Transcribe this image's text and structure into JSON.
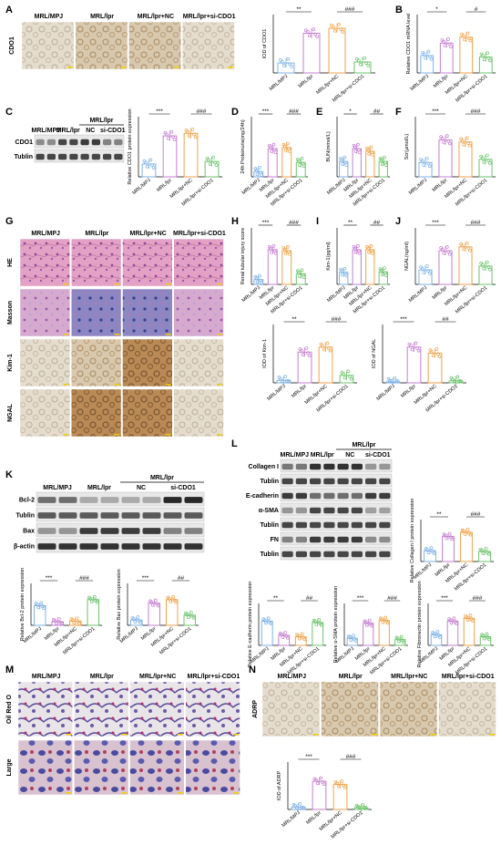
{
  "groups": [
    "MRL/MPJ",
    "MRL/lpr",
    "MRL/lpr+NC",
    "MRL/lpr+si-CDO1"
  ],
  "group_colors": [
    "#7fb2e5",
    "#c57fd1",
    "#f0a24a",
    "#6cc36c"
  ],
  "panels": {
    "A": {
      "letter": "A",
      "row_label": "CDO1"
    },
    "B": {
      "letter": "B"
    },
    "C": {
      "letter": "C",
      "blot_rows": [
        "CDO1",
        "Tublin"
      ],
      "header": "MRL/lpr",
      "lanes": [
        "MRL/MPJ",
        "MRL/lpr",
        "NC",
        "si-CDO1"
      ]
    },
    "D": {
      "letter": "D"
    },
    "E": {
      "letter": "E"
    },
    "F": {
      "letter": "F"
    },
    "G": {
      "letter": "G",
      "row_labels": [
        "HE",
        "Masson",
        "Kim-1",
        "NGAL"
      ]
    },
    "H": {
      "letter": "H"
    },
    "I": {
      "letter": "I"
    },
    "J": {
      "letter": "J"
    },
    "K": {
      "letter": "K",
      "blot_rows": [
        "Bcl-2",
        "Tublin",
        "Bax",
        "β-actin"
      ],
      "header": "MRL/lpr",
      "lanes": [
        "MRL/MPJ",
        "MRL/lpr",
        "NC",
        "si-CDO1"
      ]
    },
    "L": {
      "letter": "L",
      "blot_rows": [
        "Collagen I",
        "Tublin",
        "E-cadherin",
        "α-SMA",
        "Tublin",
        "FN",
        "Tublin"
      ],
      "header": "MRL/lpr",
      "lanes": [
        "MRL/MPJ",
        "MRL/lpr",
        "NC",
        "si-CDO1"
      ]
    },
    "M": {
      "letter": "M",
      "row_labels": [
        "Oil Red O",
        "Large"
      ]
    },
    "N": {
      "letter": "N",
      "row_label": "ADRP"
    }
  },
  "chart_data": [
    {
      "id": "A",
      "type": "scatter",
      "ylabel": "IOD of CDO1",
      "categories": [
        "MRL/MPJ",
        "MRL/lpr",
        "MRL/lpr+NC",
        "MRL/lpr+si-CDO1"
      ],
      "values": [
        0.2,
        0.8,
        0.9,
        0.22
      ],
      "sig": [
        "**",
        "###"
      ]
    },
    {
      "id": "B",
      "type": "scatter",
      "ylabel": "Relative CDO1 mRNA level",
      "categories": [
        "MRL/MPJ",
        "MRL/lpr",
        "MRL/lpr+NC",
        "MRL/lpr+si-CDO1"
      ],
      "values": [
        0.35,
        0.6,
        0.72,
        0.32
      ],
      "sig": [
        "*",
        "#"
      ]
    },
    {
      "id": "C",
      "type": "scatter",
      "ylabel": "Relative CDO1 protein expression",
      "categories": [
        "MRL/MPJ",
        "MRL/lpr",
        "MRL/lpr+NC",
        "MRL/lpr+si-CDO1"
      ],
      "values": [
        0.25,
        0.8,
        0.85,
        0.3
      ],
      "sig": [
        "***",
        "###"
      ]
    },
    {
      "id": "D",
      "type": "scatter",
      "ylabel": "24h Proteinuria(mg/24h)",
      "categories": [
        "MRL/MPJ",
        "MRL/lpr",
        "MRL/lpr+NC",
        "MRL/lpr+si-CDO1"
      ],
      "values": [
        0.1,
        0.55,
        0.57,
        0.28
      ],
      "sig": [
        "***",
        "###"
      ]
    },
    {
      "id": "E",
      "type": "scatter",
      "ylabel": "BUN(mmol/L)",
      "categories": [
        "MRL/MPJ",
        "MRL/lpr",
        "MRL/lpr+NC",
        "MRL/lpr+si-CDO1"
      ],
      "values": [
        0.3,
        0.55,
        0.5,
        0.3
      ],
      "sig": [
        "*",
        "##"
      ]
    },
    {
      "id": "F",
      "type": "scatter",
      "ylabel": "Scr(μmol/L)",
      "categories": [
        "MRL/MPJ",
        "MRL/lpr",
        "MRL/lpr+NC",
        "MRL/lpr+si-CDO1"
      ],
      "values": [
        0.28,
        0.72,
        0.68,
        0.34
      ],
      "sig": [
        "***",
        "###"
      ]
    },
    {
      "id": "H",
      "type": "scatter",
      "ylabel": "Renal tubular injury score",
      "categories": [
        "MRL/MPJ",
        "MRL/lpr",
        "MRL/lpr+NC",
        "MRL/lpr+si-CDO1"
      ],
      "values": [
        0.1,
        0.72,
        0.7,
        0.22
      ],
      "sig": [
        "***",
        "###"
      ]
    },
    {
      "id": "I",
      "type": "scatter",
      "ylabel": "Kim-1(pg/ml)",
      "categories": [
        "MRL/MPJ",
        "MRL/lpr",
        "MRL/lpr+NC",
        "MRL/lpr+si-CDO1"
      ],
      "values": [
        0.25,
        0.72,
        0.72,
        0.26
      ],
      "sig": [
        "**",
        "##"
      ]
    },
    {
      "id": "J",
      "type": "scatter",
      "ylabel": "NGAL(ng/ml)",
      "categories": [
        "MRL/MPJ",
        "MRL/lpr",
        "MRL/lpr+NC",
        "MRL/lpr+si-CDO1"
      ],
      "values": [
        0.3,
        0.7,
        0.78,
        0.38
      ],
      "sig": [
        "***",
        "###"
      ]
    },
    {
      "id": "G1",
      "type": "scatter",
      "ylabel": "IOD of Kim-1",
      "categories": [
        "MRL/MPJ",
        "MRL/lpr",
        "MRL/lpr+NC",
        "MRL/lpr+si-CDO1"
      ],
      "values": [
        0.05,
        0.62,
        0.72,
        0.15
      ],
      "sig": [
        "**",
        "###"
      ]
    },
    {
      "id": "G2",
      "type": "scatter",
      "ylabel": "IOD of NGAL",
      "categories": [
        "MRL/MPJ",
        "MRL/lpr",
        "MRL/lpr+NC",
        "MRL/lpr+si-CDO1"
      ],
      "values": [
        0.02,
        0.72,
        0.6,
        0.04
      ],
      "sig": [
        "***",
        "##"
      ]
    },
    {
      "id": "K1",
      "type": "scatter",
      "ylabel": "Relative Bcl-2 protein expression",
      "categories": [
        "MRL/MPJ",
        "MRL/lpr",
        "MRL/lpr+NC",
        "MRL/lpr+si-CDO1"
      ],
      "values": [
        0.55,
        0.1,
        0.12,
        0.72
      ],
      "sig": [
        "***",
        "###"
      ]
    },
    {
      "id": "K2",
      "type": "scatter",
      "ylabel": "Relative Bax protein expression",
      "categories": [
        "MRL/MPJ",
        "MRL/lpr",
        "MRL/lpr+NC",
        "MRL/lpr+si-CDO1"
      ],
      "values": [
        0.15,
        0.62,
        0.72,
        0.28
      ],
      "sig": [
        "***",
        "##"
      ]
    },
    {
      "id": "L1",
      "type": "scatter",
      "ylabel": "Relative Collagen I protein expression",
      "categories": [
        "MRL/MPJ",
        "MRL/lpr",
        "MRL/lpr+NC",
        "MRL/lpr+si-CDO1"
      ],
      "values": [
        0.3,
        0.7,
        0.82,
        0.28
      ],
      "sig": [
        "**",
        "###"
      ]
    },
    {
      "id": "L2",
      "type": "scatter",
      "ylabel": "Relative E-cadherin protein expression",
      "categories": [
        "MRL/MPJ",
        "MRL/lpr",
        "MRL/lpr+NC",
        "MRL/lpr+si-CDO1"
      ],
      "values": [
        0.68,
        0.28,
        0.24,
        0.64
      ],
      "sig": [
        "**",
        "##"
      ]
    },
    {
      "id": "L3",
      "type": "scatter",
      "ylabel": "Relative α-SMA protein expression",
      "categories": [
        "MRL/MPJ",
        "MRL/lpr",
        "MRL/lpr+NC",
        "MRL/lpr+si-CDO1"
      ],
      "values": [
        0.2,
        0.62,
        0.7,
        0.16
      ],
      "sig": [
        "***",
        "###"
      ]
    },
    {
      "id": "L4",
      "type": "scatter",
      "ylabel": "Relative Fibronectin protein expression",
      "categories": [
        "MRL/MPJ",
        "MRL/lpr",
        "MRL/lpr+NC",
        "MRL/lpr+si-CDO1"
      ],
      "values": [
        0.3,
        0.68,
        0.76,
        0.24
      ],
      "sig": [
        "***",
        "###"
      ]
    },
    {
      "id": "N1",
      "type": "scatter",
      "ylabel": "IOD of ADRP",
      "categories": [
        "MRL/MPJ",
        "MRL/lpr",
        "MRL/lpr+NC",
        "MRL/lpr+si-CDO1"
      ],
      "values": [
        0.06,
        0.7,
        0.62,
        0.04
      ],
      "sig": [
        "***",
        "###"
      ]
    }
  ]
}
